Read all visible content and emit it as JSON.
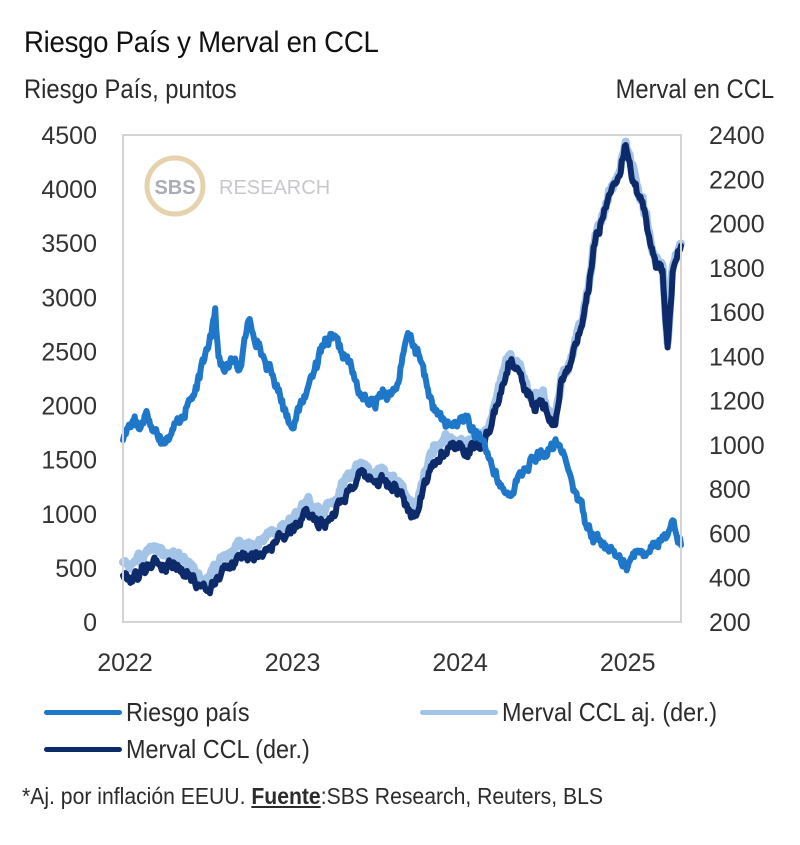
{
  "chart_data": {
    "type": "line",
    "title": "Riesgo País y Merval en CCL",
    "ylabel_left": "Riesgo País, puntos",
    "ylabel_right": "Merval en CCL",
    "xlabel": "",
    "x_ticks": [
      "2022",
      "2023",
      "2024",
      "2025"
    ],
    "x_tick_values": [
      2022,
      2023,
      2024,
      2025
    ],
    "xlim": [
      2022.0,
      2025.33
    ],
    "ylim_left": [
      0,
      4500
    ],
    "ylim_right": [
      200,
      2400
    ],
    "y_ticks_left": [
      "0",
      "500",
      "1000",
      "1500",
      "2000",
      "2500",
      "3000",
      "3500",
      "4000",
      "4500"
    ],
    "y_ticks_right": [
      "200",
      "400",
      "600",
      "800",
      "1000",
      "1200",
      "1400",
      "1600",
      "1800",
      "2000",
      "2200",
      "2400"
    ],
    "grid": false,
    "legend_position": "bottom",
    "series": [
      {
        "name": "Riesgo país",
        "axis": "left",
        "color": "#1f77c9",
        "x": [
          2022.0,
          2022.03,
          2022.07,
          2022.1,
          2022.14,
          2022.18,
          2022.22,
          2022.26,
          2022.3,
          2022.35,
          2022.4,
          2022.44,
          2022.48,
          2022.52,
          2022.55,
          2022.57,
          2022.6,
          2022.65,
          2022.7,
          2022.75,
          2022.8,
          2022.85,
          2022.9,
          2022.95,
          2023.0,
          2023.05,
          2023.1,
          2023.15,
          2023.2,
          2023.25,
          2023.3,
          2023.35,
          2023.4,
          2023.45,
          2023.5,
          2023.55,
          2023.6,
          2023.65,
          2023.7,
          2023.74,
          2023.78,
          2023.82,
          2023.86,
          2023.9,
          2023.95,
          2024.0,
          2024.05,
          2024.1,
          2024.15,
          2024.2,
          2024.25,
          2024.3,
          2024.35,
          2024.4,
          2024.45,
          2024.5,
          2024.55,
          2024.6,
          2024.65,
          2024.7,
          2024.75,
          2024.8,
          2024.85,
          2024.9,
          2024.95,
          2025.0,
          2025.05,
          2025.1,
          2025.15,
          2025.2,
          2025.25,
          2025.28,
          2025.33
        ],
        "values": [
          1680,
          1800,
          1900,
          1780,
          1950,
          1760,
          1720,
          1700,
          1780,
          1900,
          2050,
          2150,
          2400,
          2650,
          2900,
          2450,
          2330,
          2400,
          2350,
          2790,
          2600,
          2400,
          2240,
          2050,
          1820,
          1950,
          2150,
          2400,
          2550,
          2620,
          2500,
          2400,
          2150,
          2050,
          2000,
          2150,
          2100,
          2250,
          2670,
          2550,
          2400,
          2150,
          1950,
          1870,
          1820,
          1840,
          1900,
          1700,
          1680,
          1450,
          1250,
          1170,
          1300,
          1420,
          1500,
          1540,
          1600,
          1640,
          1450,
          1200,
          1000,
          820,
          750,
          650,
          600,
          545,
          600,
          650,
          700,
          760,
          800,
          940,
          710
        ]
      },
      {
        "name": "Merval CCL aj. (der.)",
        "axis": "right",
        "color": "#a3c4e6",
        "x": [
          2022.0,
          2022.05,
          2022.1,
          2022.15,
          2022.2,
          2022.25,
          2022.3,
          2022.35,
          2022.4,
          2022.45,
          2022.5,
          2022.55,
          2022.6,
          2022.65,
          2022.7,
          2022.75,
          2022.8,
          2022.85,
          2022.9,
          2022.95,
          2023.0,
          2023.05,
          2023.1,
          2023.15,
          2023.2,
          2023.25,
          2023.3,
          2023.35,
          2023.4,
          2023.45,
          2023.5,
          2023.55,
          2023.6,
          2023.65,
          2023.7,
          2023.75,
          2023.8,
          2023.85,
          2023.9,
          2023.95,
          2024.0,
          2024.05,
          2024.1,
          2024.15,
          2024.2,
          2024.25,
          2024.3,
          2024.35,
          2024.4,
          2024.45,
          2024.5,
          2024.55,
          2024.58,
          2024.62,
          2024.66,
          2024.7,
          2024.74,
          2024.78,
          2024.82,
          2024.86,
          2024.9,
          2024.94,
          2024.97,
          2025.0,
          2025.03,
          2025.06,
          2025.1,
          2025.14,
          2025.18,
          2025.22,
          2025.25,
          2025.28,
          2025.33
        ],
        "values": [
          470,
          460,
          480,
          520,
          540,
          500,
          520,
          490,
          460,
          420,
          400,
          430,
          500,
          520,
          560,
          560,
          550,
          580,
          600,
          640,
          650,
          700,
          740,
          720,
          690,
          740,
          800,
          850,
          900,
          900,
          870,
          880,
          850,
          820,
          740,
          720,
          880,
          960,
          1010,
          1030,
          1020,
          1010,
          1050,
          1040,
          1120,
          1260,
          1400,
          1380,
          1280,
          1210,
          1230,
          1150,
          1120,
          1320,
          1360,
          1480,
          1560,
          1720,
          1950,
          2040,
          2150,
          2200,
          2250,
          2370,
          2260,
          2200,
          2120,
          1960,
          1820,
          1810,
          1460,
          1800,
          1910
        ]
      },
      {
        "name": "Merval CCL (der.)",
        "axis": "right",
        "color": "#0d2a6b",
        "x": [
          2022.0,
          2022.05,
          2022.1,
          2022.15,
          2022.2,
          2022.25,
          2022.3,
          2022.35,
          2022.4,
          2022.45,
          2022.5,
          2022.55,
          2022.6,
          2022.65,
          2022.7,
          2022.75,
          2022.8,
          2022.85,
          2022.9,
          2022.95,
          2023.0,
          2023.05,
          2023.1,
          2023.15,
          2023.2,
          2023.25,
          2023.3,
          2023.35,
          2023.4,
          2023.45,
          2023.5,
          2023.55,
          2023.6,
          2023.65,
          2023.7,
          2023.75,
          2023.8,
          2023.85,
          2023.9,
          2023.95,
          2024.0,
          2024.05,
          2024.1,
          2024.15,
          2024.2,
          2024.25,
          2024.3,
          2024.35,
          2024.4,
          2024.45,
          2024.5,
          2024.55,
          2024.58,
          2024.62,
          2024.66,
          2024.7,
          2024.74,
          2024.78,
          2024.82,
          2024.86,
          2024.9,
          2024.94,
          2024.97,
          2025.0,
          2025.03,
          2025.06,
          2025.1,
          2025.14,
          2025.18,
          2025.22,
          2025.25,
          2025.28,
          2025.33
        ],
        "values": [
          410,
          400,
          420,
          460,
          480,
          445,
          470,
          440,
          410,
          370,
          340,
          370,
          440,
          470,
          500,
          500,
          500,
          530,
          560,
          590,
          600,
          650,
          690,
          670,
          640,
          690,
          750,
          800,
          850,
          855,
          830,
          840,
          810,
          780,
          700,
          680,
          840,
          920,
          970,
          990,
          985,
          975,
          1010,
          1005,
          1090,
          1230,
          1370,
          1350,
          1250,
          1185,
          1200,
          1120,
          1090,
          1300,
          1340,
          1460,
          1540,
          1700,
          1930,
          2020,
          2130,
          2180,
          2230,
          2355,
          2240,
          2180,
          2100,
          1940,
          1800,
          1790,
          1440,
          1780,
          1900
        ]
      }
    ]
  },
  "header": {
    "title": "Riesgo País y Merval en CCL",
    "left_axis_label": "Riesgo País, puntos",
    "right_axis_label": "Merval en CCL"
  },
  "watermark": {
    "logo_text": "SBS",
    "text": "RESEARCH"
  },
  "legend": [
    {
      "label": "Riesgo país",
      "color": "#1f77c9"
    },
    {
      "label": "Merval CCL aj. (der.)",
      "color": "#a3c4e6"
    },
    {
      "label": "Merval CCL (der.)",
      "color": "#0d2a6b"
    }
  ],
  "footnote": {
    "prefix": "*Aj. por inflación EEUU. ",
    "source_label": "Fuente",
    "source_text": ":SBS Research, Reuters, BLS"
  }
}
